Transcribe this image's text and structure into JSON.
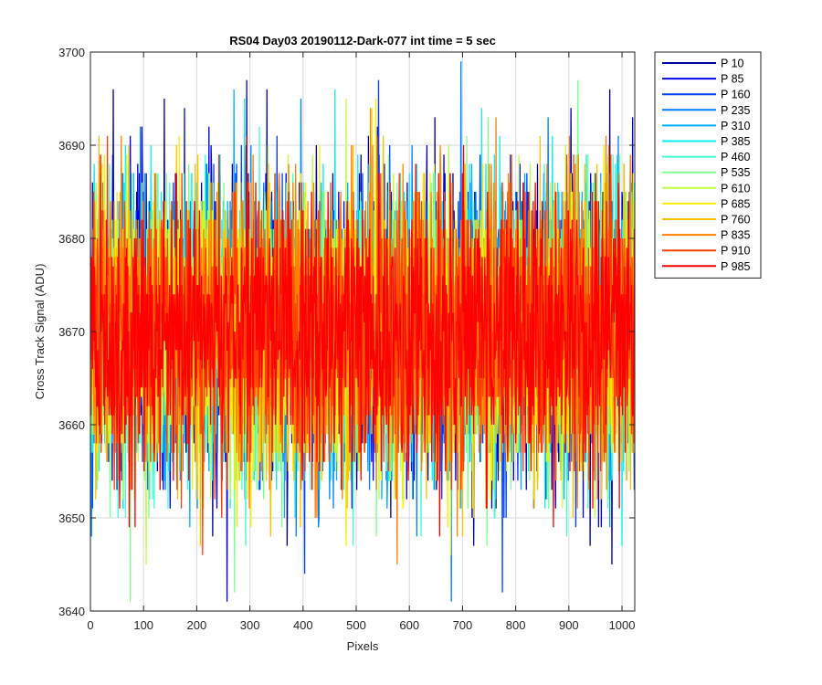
{
  "chart_data": {
    "type": "line",
    "title": "RS04 Day03 20190112-Dark-077 int time = 5 sec",
    "xlabel": "Pixels",
    "ylabel": "Cross Track Signal (ADU)",
    "xlim": [
      0,
      1024
    ],
    "ylim": [
      3640,
      3700
    ],
    "xticks": [
      0,
      100,
      200,
      300,
      400,
      500,
      600,
      700,
      800,
      900,
      1000
    ],
    "yticks": [
      3640,
      3650,
      3660,
      3670,
      3680,
      3690,
      3700
    ],
    "grid": true,
    "legend_position": "outside-top-right",
    "n_points_per_series": 1024,
    "noise_model": {
      "mean": 3670,
      "sigma": 7.5,
      "min": 3641,
      "max": 3699
    },
    "series": [
      {
        "name": "P 10",
        "color": "#00009f"
      },
      {
        "name": "P 85",
        "color": "#0000e8"
      },
      {
        "name": "P 160",
        "color": "#0040ff"
      },
      {
        "name": "P 235",
        "color": "#0080ff"
      },
      {
        "name": "P 310",
        "color": "#00b0ff"
      },
      {
        "name": "P 385",
        "color": "#10eeee"
      },
      {
        "name": "P 460",
        "color": "#40ffd0"
      },
      {
        "name": "P 535",
        "color": "#80ff90"
      },
      {
        "name": "P 610",
        "color": "#c0ff40"
      },
      {
        "name": "P 685",
        "color": "#f8f000"
      },
      {
        "name": "P 760",
        "color": "#ffc000"
      },
      {
        "name": "P 835",
        "color": "#ff8000"
      },
      {
        "name": "P 910",
        "color": "#ff4000"
      },
      {
        "name": "P 985",
        "color": "#ff0000"
      }
    ]
  }
}
